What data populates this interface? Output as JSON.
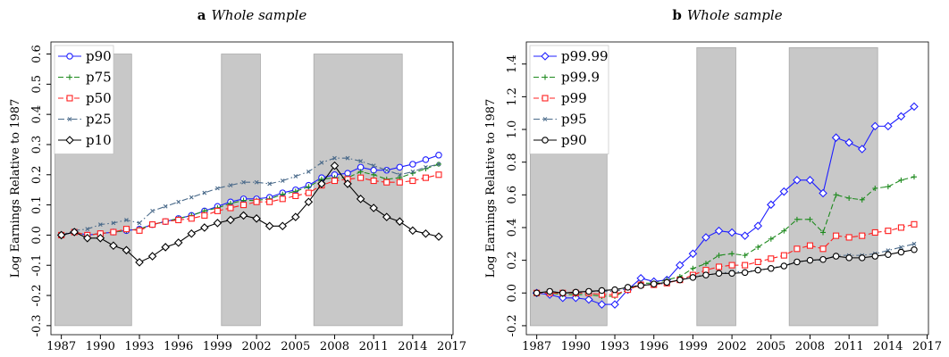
{
  "chart_data": [
    {
      "type": "line",
      "panel": "a",
      "title": "Whole sample",
      "y_label": "Log Earnings Relative to 1987",
      "x": [
        1987,
        1988,
        1989,
        1990,
        1991,
        1992,
        1993,
        1994,
        1995,
        1996,
        1997,
        1998,
        1999,
        2000,
        2001,
        2002,
        2003,
        2004,
        2005,
        2006,
        2007,
        2008,
        2009,
        2010,
        2011,
        2012,
        2013,
        2014,
        2015,
        2016
      ],
      "xlim": [
        1986.2,
        2017.1
      ],
      "xticks": [
        1987,
        1990,
        1993,
        1996,
        1999,
        2002,
        2005,
        2008,
        2011,
        2014,
        2017
      ],
      "ylim": [
        -0.33,
        0.64
      ],
      "yticks": [
        -0.3,
        -0.2,
        -0.1,
        {
          "value": 0,
          "label": "0.0"
        },
        0.1,
        0.2,
        0.3,
        0.4,
        0.5,
        0.6
      ],
      "shaded_spans": [
        [
          1986.5,
          1992.4
        ],
        [
          1999.3,
          2002.3
        ],
        [
          2006.4,
          2013.2
        ]
      ],
      "shaded_ylim": [
        -0.3,
        0.6
      ],
      "shade_color": "#c8c8c8",
      "legend": "upper left",
      "series": [
        {
          "name": "p90",
          "color": "#1f1fff",
          "marker": "circle",
          "dash": "solid",
          "values": [
            0,
            0.01,
            0,
            0.005,
            0.01,
            0.015,
            0.02,
            0.035,
            0.045,
            0.055,
            0.065,
            0.08,
            0.095,
            0.11,
            0.12,
            0.12,
            0.125,
            0.14,
            0.15,
            0.165,
            0.19,
            0.2,
            0.205,
            0.225,
            0.215,
            0.215,
            0.225,
            0.235,
            0.25,
            0.265
          ]
        },
        {
          "name": "p75",
          "color": "#1e8a1e",
          "marker": "plus",
          "dash": "dashed",
          "values": [
            0,
            0.01,
            0,
            0.005,
            0.01,
            0.015,
            0.02,
            0.035,
            0.045,
            0.055,
            0.065,
            0.08,
            0.09,
            0.105,
            0.115,
            0.115,
            0.12,
            0.135,
            0.145,
            0.16,
            0.185,
            0.19,
            0.19,
            0.21,
            0.2,
            0.185,
            0.19,
            0.205,
            0.22,
            0.235
          ]
        },
        {
          "name": "p50",
          "color": "#ff2020",
          "marker": "square",
          "dash": "dashed",
          "values": [
            0,
            0.01,
            0,
            0.005,
            0.01,
            0.02,
            0.015,
            0.035,
            0.045,
            0.05,
            0.055,
            0.065,
            0.08,
            0.09,
            0.1,
            0.11,
            0.11,
            0.12,
            0.13,
            0.14,
            0.165,
            0.18,
            0.185,
            0.19,
            0.18,
            0.175,
            0.175,
            0.18,
            0.19,
            0.2
          ]
        },
        {
          "name": "p25",
          "color": "#4a6a8a",
          "marker": "x",
          "dash": "dashdot",
          "values": [
            0,
            0.015,
            0.02,
            0.035,
            0.04,
            0.05,
            0.04,
            0.08,
            0.095,
            0.11,
            0.125,
            0.14,
            0.155,
            0.165,
            0.175,
            0.175,
            0.17,
            0.18,
            0.195,
            0.21,
            0.24,
            0.255,
            0.255,
            0.245,
            0.23,
            0.215,
            0.2,
            0.21,
            0.225,
            0.235
          ]
        },
        {
          "name": "p10",
          "color": "#000000",
          "marker": "diamond",
          "dash": "solid",
          "values": [
            0,
            0.01,
            -0.01,
            -0.01,
            -0.035,
            -0.05,
            -0.09,
            -0.07,
            -0.04,
            -0.025,
            0.005,
            0.025,
            0.04,
            0.05,
            0.065,
            0.055,
            0.03,
            0.03,
            0.06,
            0.11,
            0.17,
            0.23,
            0.17,
            0.12,
            0.09,
            0.06,
            0.045,
            0.015,
            0.005,
            -0.005
          ]
        }
      ]
    },
    {
      "type": "line",
      "panel": "b",
      "title": "Whole sample",
      "y_label": "Log Earnings Relative to 1987",
      "x": [
        1987,
        1988,
        1989,
        1990,
        1991,
        1992,
        1993,
        1994,
        1995,
        1996,
        1997,
        1998,
        1999,
        2000,
        2001,
        2002,
        2003,
        2004,
        2005,
        2006,
        2007,
        2008,
        2009,
        2010,
        2011,
        2012,
        2013,
        2014,
        2015,
        2016
      ],
      "xlim": [
        1986.2,
        2017.1
      ],
      "xticks": [
        1987,
        1990,
        1993,
        1996,
        1999,
        2002,
        2005,
        2008,
        2011,
        2014,
        2017
      ],
      "ylim": [
        -0.255,
        1.535
      ],
      "yticks": [
        -0.2,
        {
          "value": 0,
          "label": "0.0"
        },
        0.2,
        0.4,
        0.6,
        0.8,
        {
          "value": 1,
          "label": "1.0"
        },
        1.2,
        1.4
      ],
      "shaded_spans": [
        [
          1986.5,
          1992.4
        ],
        [
          1999.3,
          2002.3
        ],
        [
          2006.4,
          2013.2
        ]
      ],
      "shaded_ylim": [
        -0.2,
        1.5
      ],
      "shade_color": "#c8c8c8",
      "legend": "upper left",
      "series": [
        {
          "name": "p99.99",
          "color": "#1f1fff",
          "marker": "diamond",
          "dash": "solid",
          "values": [
            0,
            -0.01,
            -0.03,
            -0.03,
            -0.04,
            -0.07,
            -0.07,
            0.02,
            0.09,
            0.07,
            0.08,
            0.17,
            0.24,
            0.34,
            0.38,
            0.37,
            0.35,
            0.41,
            0.54,
            0.62,
            0.69,
            0.69,
            0.61,
            0.95,
            0.92,
            0.88,
            1.02,
            1.02,
            1.08,
            1.14
          ]
        },
        {
          "name": "p99.9",
          "color": "#1e8a1e",
          "marker": "plus",
          "dash": "dashed",
          "values": [
            0,
            0,
            -0.01,
            -0.01,
            -0.01,
            -0.02,
            -0.02,
            0.02,
            0.06,
            0.06,
            0.08,
            0.1,
            0.15,
            0.18,
            0.23,
            0.24,
            0.23,
            0.28,
            0.33,
            0.38,
            0.45,
            0.45,
            0.37,
            0.6,
            0.58,
            0.57,
            0.64,
            0.65,
            0.69,
            0.71
          ]
        },
        {
          "name": "p99",
          "color": "#ff2020",
          "marker": "square",
          "dash": "dashed",
          "values": [
            0,
            0,
            0,
            0,
            0,
            -0.01,
            -0.01,
            0.02,
            0.05,
            0.05,
            0.06,
            0.08,
            0.11,
            0.14,
            0.16,
            0.17,
            0.17,
            0.19,
            0.21,
            0.23,
            0.27,
            0.29,
            0.27,
            0.35,
            0.34,
            0.35,
            0.37,
            0.38,
            0.4,
            0.42
          ]
        },
        {
          "name": "p95",
          "color": "#4a6a8a",
          "marker": "x",
          "dash": "dashdot",
          "values": [
            0,
            0.01,
            0,
            0,
            0.01,
            0.01,
            0.01,
            0.03,
            0.05,
            0.05,
            0.06,
            0.08,
            0.1,
            0.11,
            0.12,
            0.13,
            0.13,
            0.14,
            0.15,
            0.17,
            0.19,
            0.2,
            0.2,
            0.23,
            0.23,
            0.23,
            0.24,
            0.26,
            0.28,
            0.3
          ]
        },
        {
          "name": "p90",
          "color": "#000000",
          "marker": "circle",
          "dash": "solid",
          "values": [
            0,
            0.01,
            0,
            0.005,
            0.01,
            0.015,
            0.02,
            0.035,
            0.045,
            0.055,
            0.065,
            0.08,
            0.095,
            0.11,
            0.12,
            0.12,
            0.125,
            0.14,
            0.15,
            0.165,
            0.19,
            0.2,
            0.205,
            0.225,
            0.215,
            0.215,
            0.225,
            0.235,
            0.25,
            0.265
          ]
        }
      ]
    }
  ]
}
